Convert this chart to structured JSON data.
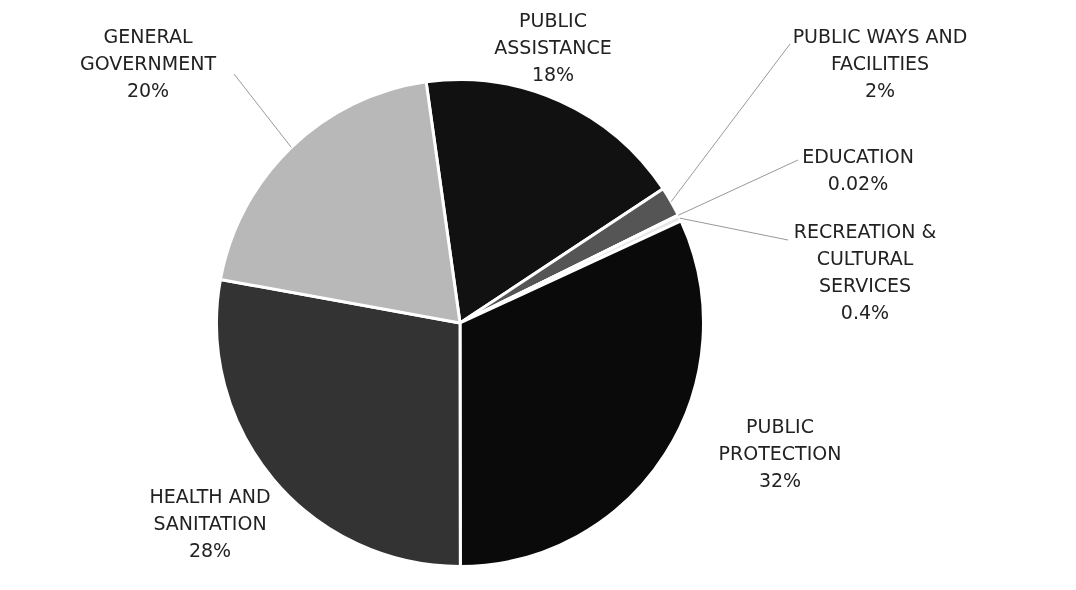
{
  "chart_data": {
    "type": "pie",
    "categories": [
      "PUBLIC ASSISTANCE",
      "PUBLIC WAYS AND FACILITIES",
      "EDUCATION",
      "RECREATION & CULTURAL SERVICES",
      "PUBLIC PROTECTION",
      "HEALTH AND SANITATION",
      "GENERAL GOVERNMENT"
    ],
    "values": [
      18,
      2,
      0.02,
      0.4,
      32,
      28,
      20
    ],
    "value_labels": [
      "18%",
      "2%",
      "0.02%",
      "0.4%",
      "32%",
      "28%",
      "20%"
    ],
    "colors": [
      "#111111",
      "#555555",
      "#888888",
      "#e6e6e6",
      "#0a0a0a",
      "#333333",
      "#b8b8b8"
    ],
    "legend": false
  }
}
